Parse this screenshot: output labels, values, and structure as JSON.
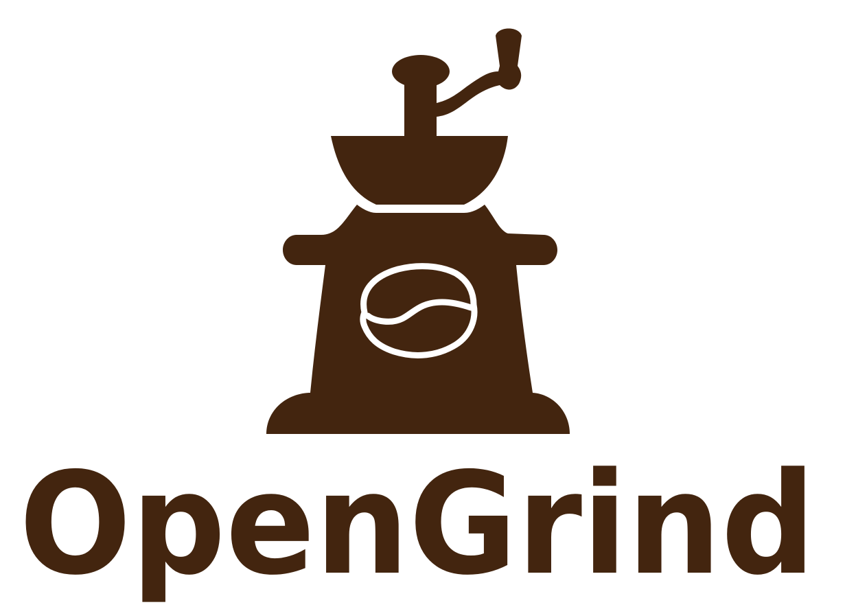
{
  "logo": {
    "brand_name": "OpenGrind",
    "icon": "coffee-grinder-icon",
    "bean_icon": "coffee-bean-icon",
    "color": "#43250F",
    "background": "#FFFFFF"
  }
}
